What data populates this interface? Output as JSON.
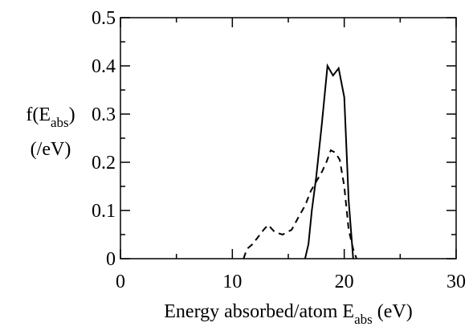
{
  "chart_data": {
    "type": "line",
    "xlabel": "Energy absorbed/atom E",
    "xlabel_sub": "abs",
    "xlabel_unit": "(eV)",
    "ylabel_line1": "f(E",
    "ylabel_line1_sub": "abs",
    "ylabel_line1_close": ")",
    "ylabel_line2": "(/eV)",
    "xlim": [
      0,
      30
    ],
    "ylim": [
      0,
      0.5
    ],
    "xticks": [
      0,
      10,
      20,
      30
    ],
    "ytick_labels": [
      "0",
      "0.1",
      "0.2",
      "0.3",
      "0.4",
      "0.5"
    ],
    "xtick_labels": [
      "0",
      "10",
      "20",
      "30"
    ],
    "yticks": [
      0,
      0.1,
      0.2,
      0.3,
      0.4,
      0.5
    ],
    "grid": false,
    "legend": "none",
    "series": [
      {
        "style": "solid",
        "color": "#000000",
        "points": [
          [
            16.5,
            0.0
          ],
          [
            16.8,
            0.03
          ],
          [
            17.1,
            0.1
          ],
          [
            17.5,
            0.17
          ],
          [
            18.0,
            0.28
          ],
          [
            18.5,
            0.4
          ],
          [
            19.0,
            0.38
          ],
          [
            19.5,
            0.395
          ],
          [
            20.0,
            0.335
          ],
          [
            20.4,
            0.12
          ],
          [
            20.8,
            0.0
          ]
        ]
      },
      {
        "style": "dashed",
        "color": "#000000",
        "points": [
          [
            11.0,
            0.0
          ],
          [
            11.3,
            0.02
          ],
          [
            11.8,
            0.03
          ],
          [
            12.3,
            0.045
          ],
          [
            12.8,
            0.06
          ],
          [
            13.2,
            0.07
          ],
          [
            13.8,
            0.055
          ],
          [
            14.5,
            0.05
          ],
          [
            15.3,
            0.06
          ],
          [
            16.0,
            0.09
          ],
          [
            16.5,
            0.11
          ],
          [
            17.0,
            0.14
          ],
          [
            17.5,
            0.16
          ],
          [
            18.0,
            0.18
          ],
          [
            18.4,
            0.2
          ],
          [
            18.8,
            0.225
          ],
          [
            19.2,
            0.22
          ],
          [
            19.6,
            0.205
          ],
          [
            20.0,
            0.15
          ],
          [
            20.4,
            0.06
          ],
          [
            20.8,
            0.02
          ],
          [
            21.1,
            0.0
          ]
        ]
      }
    ]
  }
}
